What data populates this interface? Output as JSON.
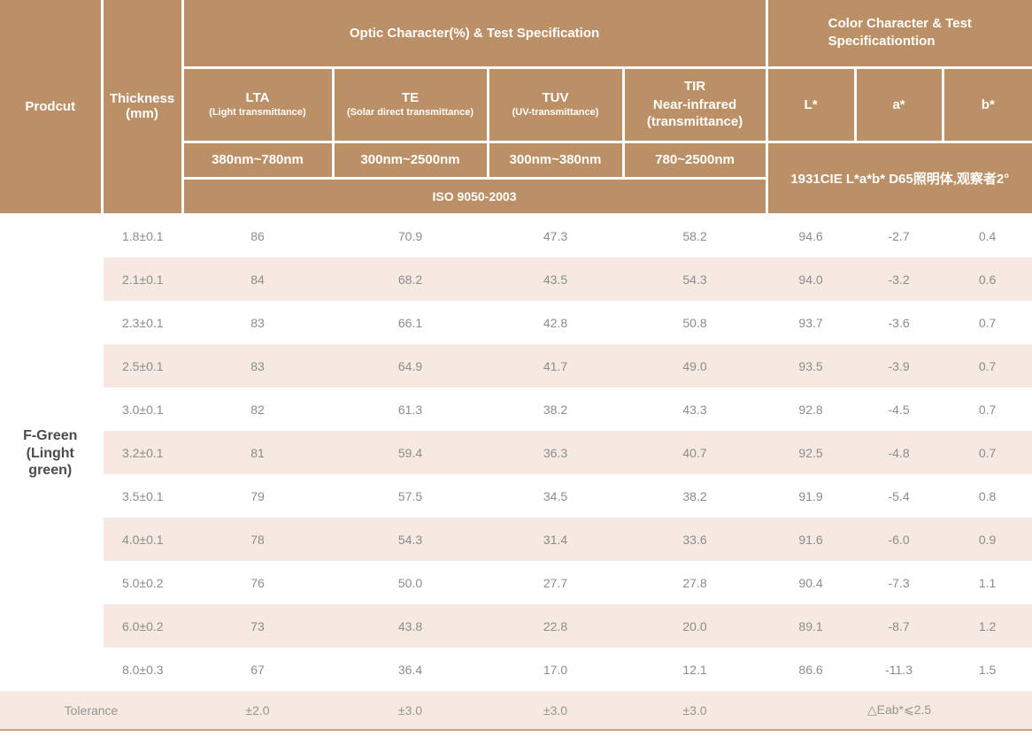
{
  "colors": {
    "header_bg": "#bc9066",
    "stripe_bg": "#f5e9e2",
    "bottom_line": "#cba674",
    "data_text": "#8c8c8c",
    "product_text": "#4a4a4a"
  },
  "header": {
    "product": "Prodcut",
    "thickness": "Thickness\n(mm)",
    "optic_group": "Optic Character(%) & Test Specification",
    "color_group": "Color Character & Test\nSpecificationtion",
    "optic_columns": [
      {
        "abbr": "LTA",
        "desc": "(Light transmittance)",
        "range": "380nm~780nm"
      },
      {
        "abbr": "TE",
        "desc": "(Solar direct transmittance)",
        "range": "300nm~2500nm"
      },
      {
        "abbr": "TUV",
        "desc": "(UV-transmittance)",
        "range": "300nm~380nm"
      },
      {
        "abbr": "TIR",
        "desc": "Near-infrared\n(transmittance)",
        "range": "780~2500nm"
      }
    ],
    "color_columns": [
      "L*",
      "a*",
      "b*"
    ],
    "iso": "ISO 9050-2003",
    "cie": "1931CIE L*a*b* D65照明体,观察者2°"
  },
  "product": "F-Green\n(Linght\ngreen)",
  "rows": [
    {
      "thickness": "1.8±0.1",
      "lta": "86",
      "te": "70.9",
      "tuv": "47.3",
      "tir": "58.2",
      "l": "94.6",
      "a": "-2.7",
      "b": "0.4"
    },
    {
      "thickness": "2.1±0.1",
      "lta": "84",
      "te": "68.2",
      "tuv": "43.5",
      "tir": "54.3",
      "l": "94.0",
      "a": "-3.2",
      "b": "0.6"
    },
    {
      "thickness": "2.3±0.1",
      "lta": "83",
      "te": "66.1",
      "tuv": "42.8",
      "tir": "50.8",
      "l": "93.7",
      "a": "-3.6",
      "b": "0.7"
    },
    {
      "thickness": "2.5±0.1",
      "lta": "83",
      "te": "64.9",
      "tuv": "41.7",
      "tir": "49.0",
      "l": "93.5",
      "a": "-3.9",
      "b": "0.7"
    },
    {
      "thickness": "3.0±0.1",
      "lta": "82",
      "te": "61.3",
      "tuv": "38.2",
      "tir": "43.3",
      "l": "92.8",
      "a": "-4.5",
      "b": "0.7"
    },
    {
      "thickness": "3.2±0.1",
      "lta": "81",
      "te": "59.4",
      "tuv": "36.3",
      "tir": "40.7",
      "l": "92.5",
      "a": "-4.8",
      "b": "0.7"
    },
    {
      "thickness": "3.5±0.1",
      "lta": "79",
      "te": "57.5",
      "tuv": "34.5",
      "tir": "38.2",
      "l": "91.9",
      "a": "-5.4",
      "b": "0.8"
    },
    {
      "thickness": "4.0±0.1",
      "lta": "78",
      "te": "54.3",
      "tuv": "31.4",
      "tir": "33.6",
      "l": "91.6",
      "a": "-6.0",
      "b": "0.9"
    },
    {
      "thickness": "5.0±0.2",
      "lta": "76",
      "te": "50.0",
      "tuv": "27.7",
      "tir": "27.8",
      "l": "90.4",
      "a": "-7.3",
      "b": "1.1"
    },
    {
      "thickness": "6.0±0.2",
      "lta": "73",
      "te": "43.8",
      "tuv": "22.8",
      "tir": "20.0",
      "l": "89.1",
      "a": "-8.7",
      "b": "1.2"
    },
    {
      "thickness": "8.0±0.3",
      "lta": "67",
      "te": "36.4",
      "tuv": "17.0",
      "tir": "12.1",
      "l": "86.6",
      "a": "-11.3",
      "b": "1.5"
    }
  ],
  "tolerance": {
    "label": "Tolerance",
    "lta": "±2.0",
    "te": "±3.0",
    "tuv": "±3.0",
    "tir": "±3.0",
    "color": "△Eab*⩽2.5"
  }
}
